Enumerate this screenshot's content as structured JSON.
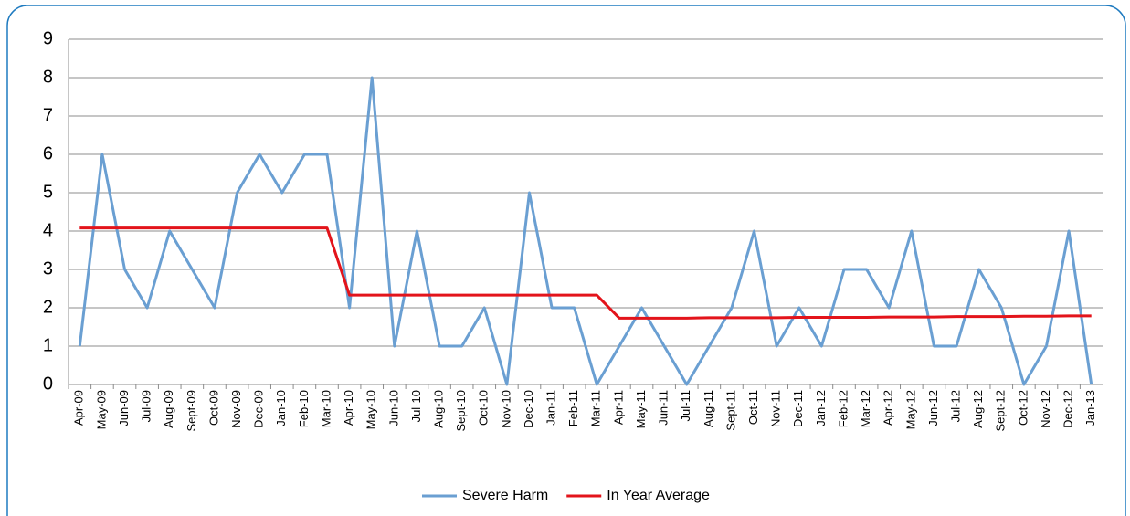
{
  "chart_data": {
    "type": "line",
    "categories": [
      "Apr-09",
      "May-09",
      "Jun-09",
      "Jul-09",
      "Aug-09",
      "Sept-09",
      "Oct-09",
      "Nov-09",
      "Dec-09",
      "Jan-10",
      "Feb-10",
      "Mar-10",
      "Apr-10",
      "May-10",
      "Jun-10",
      "Jul-10",
      "Aug-10",
      "Sept-10",
      "Oct-10",
      "Nov-10",
      "Dec-10",
      "Jan-11",
      "Feb-11",
      "Mar-11",
      "Apr-11",
      "May-11",
      "Jun-11",
      "Jul-11",
      "Aug-11",
      "Sept-11",
      "Oct-11",
      "Nov-11",
      "Dec-11",
      "Jan-12",
      "Feb-12",
      "Mar-12",
      "Apr-12",
      "May-12",
      "Jun-12",
      "Jul-12",
      "Aug-12",
      "Sept-12",
      "Oct-12",
      "Nov-12",
      "Dec-12",
      "Jan-13"
    ],
    "series": [
      {
        "name": "Severe Harm",
        "color": "#6a9fd2",
        "values": [
          1,
          6,
          3,
          2,
          4,
          3,
          2,
          5,
          6,
          5,
          6,
          6,
          2,
          8,
          1,
          4,
          1,
          1,
          2,
          0,
          5,
          2,
          2,
          0,
          1,
          2,
          1,
          0,
          1,
          2,
          4,
          1,
          2,
          1,
          3,
          3,
          2,
          4,
          1,
          1,
          3,
          2,
          0,
          1,
          4,
          0
        ]
      },
      {
        "name": "In Year Average",
        "color": "#e3141b",
        "values": [
          4.08,
          4.08,
          4.08,
          4.08,
          4.08,
          4.08,
          4.08,
          4.08,
          4.08,
          4.08,
          4.08,
          4.08,
          2.33,
          2.33,
          2.33,
          2.33,
          2.33,
          2.33,
          2.33,
          2.33,
          2.33,
          2.33,
          2.33,
          2.33,
          1.73,
          1.73,
          1.73,
          1.73,
          1.74,
          1.74,
          1.74,
          1.74,
          1.75,
          1.75,
          1.75,
          1.75,
          1.76,
          1.76,
          1.76,
          1.77,
          1.77,
          1.77,
          1.78,
          1.78,
          1.79,
          1.79
        ]
      }
    ],
    "ylim": [
      0,
      9
    ],
    "yticks": [
      0,
      1,
      2,
      3,
      4,
      5,
      6,
      7,
      8,
      9
    ],
    "grid": true,
    "legend": "bottom"
  }
}
